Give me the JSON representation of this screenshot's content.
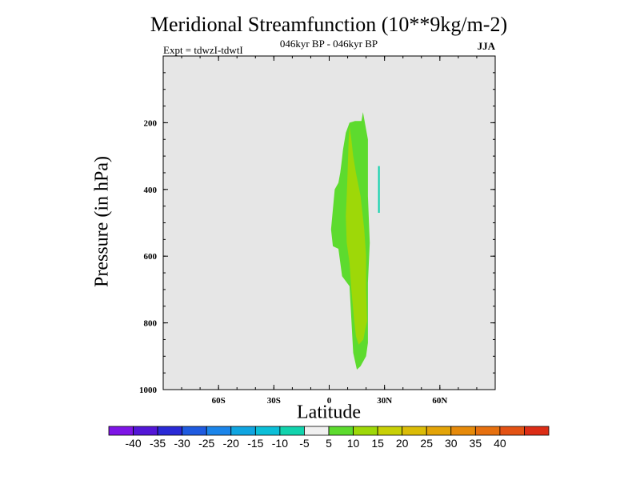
{
  "chart_data": {
    "type": "contour",
    "title": "Meridional Streamfunction (10**9kg/m-2)",
    "subtitle_center": "046kyr BP - 046kyr BP",
    "subtitle_left": "Expt = tdwzI-tdwtI",
    "subtitle_right": "JJA",
    "xlabel": "Latitude",
    "ylabel": "Pressure (in hPa)",
    "xlim": [
      -90,
      90
    ],
    "ylim": [
      0,
      1000
    ],
    "x_ticks": [
      {
        "value": -60,
        "label": "60S"
      },
      {
        "value": -30,
        "label": "30S"
      },
      {
        "value": 0,
        "label": "0"
      },
      {
        "value": 30,
        "label": "30N"
      },
      {
        "value": 60,
        "label": "60N"
      }
    ],
    "x_minor_step": 10,
    "y_ticks": [
      {
        "value": 200,
        "label": "200"
      },
      {
        "value": 400,
        "label": "400"
      },
      {
        "value": 600,
        "label": "600"
      },
      {
        "value": 800,
        "label": "800"
      },
      {
        "value": 1000,
        "label": "1000"
      }
    ],
    "y_minor_step": 50,
    "background_color": "#e6e6e6",
    "regions": [
      {
        "name": "level-5-10",
        "level": "5 to 10",
        "color": "#5ddb2e",
        "points": [
          [
            18.3,
            168
          ],
          [
            21,
            250
          ],
          [
            21,
            420
          ],
          [
            22,
            560
          ],
          [
            21,
            680
          ],
          [
            21,
            860
          ],
          [
            20,
            900
          ],
          [
            17,
            930
          ],
          [
            15,
            940
          ],
          [
            13,
            890
          ],
          [
            12,
            790
          ],
          [
            11,
            690
          ],
          [
            7,
            660
          ],
          [
            5,
            578
          ],
          [
            2,
            570
          ],
          [
            1,
            520
          ],
          [
            2,
            460
          ],
          [
            3,
            400
          ],
          [
            5,
            380
          ],
          [
            6,
            350
          ],
          [
            6.7,
            320
          ],
          [
            7.5,
            280
          ],
          [
            9,
            230
          ],
          [
            11,
            200
          ],
          [
            14,
            195
          ],
          [
            17.5,
            195
          ]
        ]
      },
      {
        "name": "level-10-15",
        "level": "10 to 15",
        "color": "#9ed808",
        "points": [
          [
            11,
            210
          ],
          [
            12,
            250
          ],
          [
            13,
            300
          ],
          [
            14.5,
            350
          ],
          [
            17,
            420
          ],
          [
            19,
            520
          ],
          [
            20,
            600
          ],
          [
            20,
            700
          ],
          [
            20.5,
            795
          ],
          [
            19.5,
            820
          ],
          [
            18.5,
            850
          ],
          [
            16,
            865
          ],
          [
            14.5,
            840
          ],
          [
            13.5,
            790
          ],
          [
            12,
            700
          ],
          [
            11,
            620
          ],
          [
            9.5,
            560
          ],
          [
            9,
            480
          ],
          [
            9.5,
            420
          ],
          [
            10,
            340
          ],
          [
            10.5,
            260
          ]
        ]
      },
      {
        "name": "level-minus-10-minus-5",
        "level": "-10 to -5",
        "color": "#12d3ad",
        "points": [
          [
            26.5,
            330
          ],
          [
            27.4,
            330
          ],
          [
            27.4,
            470
          ],
          [
            26.5,
            470
          ]
        ]
      }
    ],
    "colorbar": {
      "colors": [
        "#7e15e6",
        "#5316d7",
        "#2a2ad6",
        "#1f5be0",
        "#1b85ea",
        "#10a5e1",
        "#0cbfd8",
        "#12d3ad",
        "#f0f0f0",
        "#5ddb2e",
        "#9ed808",
        "#c8d006",
        "#dbbc07",
        "#e3a408",
        "#e68a0a",
        "#e6700f",
        "#e35214",
        "#dc2d16"
      ],
      "labels": [
        "-40",
        "-35",
        "-30",
        "-25",
        "-20",
        "-15",
        "-10",
        "-5",
        "5",
        "10",
        "15",
        "20",
        "25",
        "30",
        "35",
        "40"
      ]
    }
  }
}
